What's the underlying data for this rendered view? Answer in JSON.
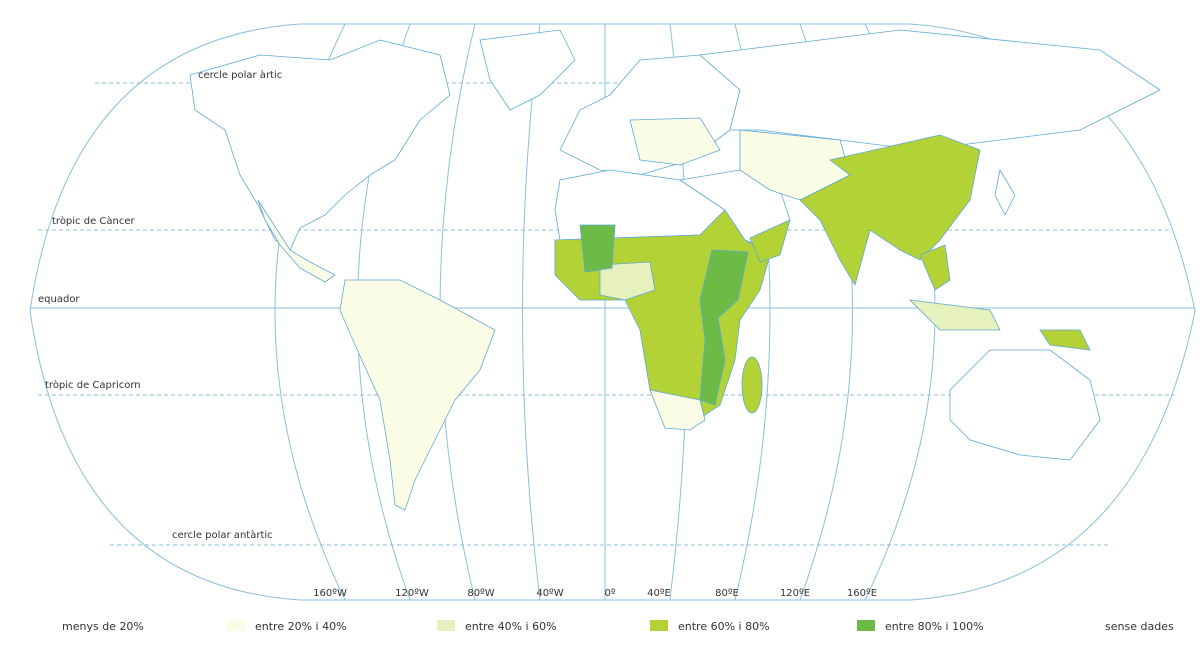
{
  "map": {
    "parallels": [
      {
        "label": "cercle polar àrtic"
      },
      {
        "label": "tròpic de Càncer"
      },
      {
        "label": "equador"
      },
      {
        "label": "tròpic de Capricorn"
      },
      {
        "label": "cercle polar antàrtic"
      }
    ],
    "meridian_labels": [
      "160ºW",
      "120ºW",
      "80ºW",
      "40ºW",
      "0º",
      "40ºE",
      "80ºE",
      "120ºE",
      "160ºE"
    ],
    "legend": [
      {
        "label": "menys de 20%",
        "color": "#ffffff"
      },
      {
        "label": "entre 20% i 40%",
        "color": "#fbfce6"
      },
      {
        "label": "entre 40% i 60%",
        "color": "#e6f1bd"
      },
      {
        "label": "entre 60% i 80%",
        "color": "#b3d236"
      },
      {
        "label": "entre 80% i 100%",
        "color": "#6dbb47"
      },
      {
        "label": "sense dades"
      }
    ]
  }
}
